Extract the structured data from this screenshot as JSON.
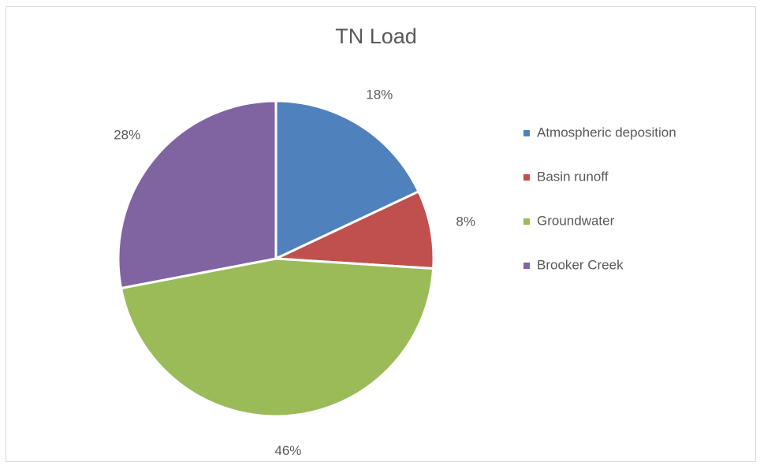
{
  "chart_data": {
    "type": "pie",
    "title": "TN Load",
    "categories": [
      "Atmospheric deposition",
      "Basin runoff",
      "Groundwater",
      "Brooker Creek"
    ],
    "values": [
      18,
      8,
      46,
      28
    ],
    "value_labels": [
      "18%",
      "8%",
      "46%",
      "28%"
    ],
    "colors": [
      "#4f81bd",
      "#c0504d",
      "#9bbb59",
      "#8064a2"
    ],
    "legend": "right"
  }
}
